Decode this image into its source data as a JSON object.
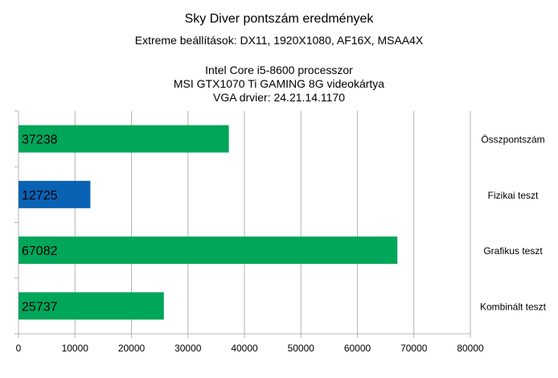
{
  "chart_data": {
    "type": "bar",
    "orientation": "horizontal",
    "title": "Sky Diver pontszám eredmények",
    "subtitle": "Extreme beállítások: DX11, 1920X1080, AF16X, MSAA4X",
    "info_lines": [
      "Intel Core i5-8600 processzor",
      "MSI GTX1070 Ti GAMING 8G videokártya",
      "VGA drvier: 24.21.14.1170"
    ],
    "categories": [
      "Összpontszám",
      "Fizikai teszt",
      "Grafikus teszt",
      "Kombinált teszt"
    ],
    "values": [
      37238,
      12725,
      67082,
      25737
    ],
    "data_labels": [
      "37238",
      "12725",
      "67082",
      "25737"
    ],
    "bar_colors": [
      "#00a65a",
      "#0a62b4",
      "#00a65a",
      "#00a65a"
    ],
    "xlim": [
      0,
      80000
    ],
    "xticks": [
      0,
      10000,
      20000,
      30000,
      40000,
      50000,
      60000,
      70000,
      80000
    ],
    "xlabel": "",
    "ylabel": "",
    "grid": "vertical",
    "category_label_position": "right"
  }
}
